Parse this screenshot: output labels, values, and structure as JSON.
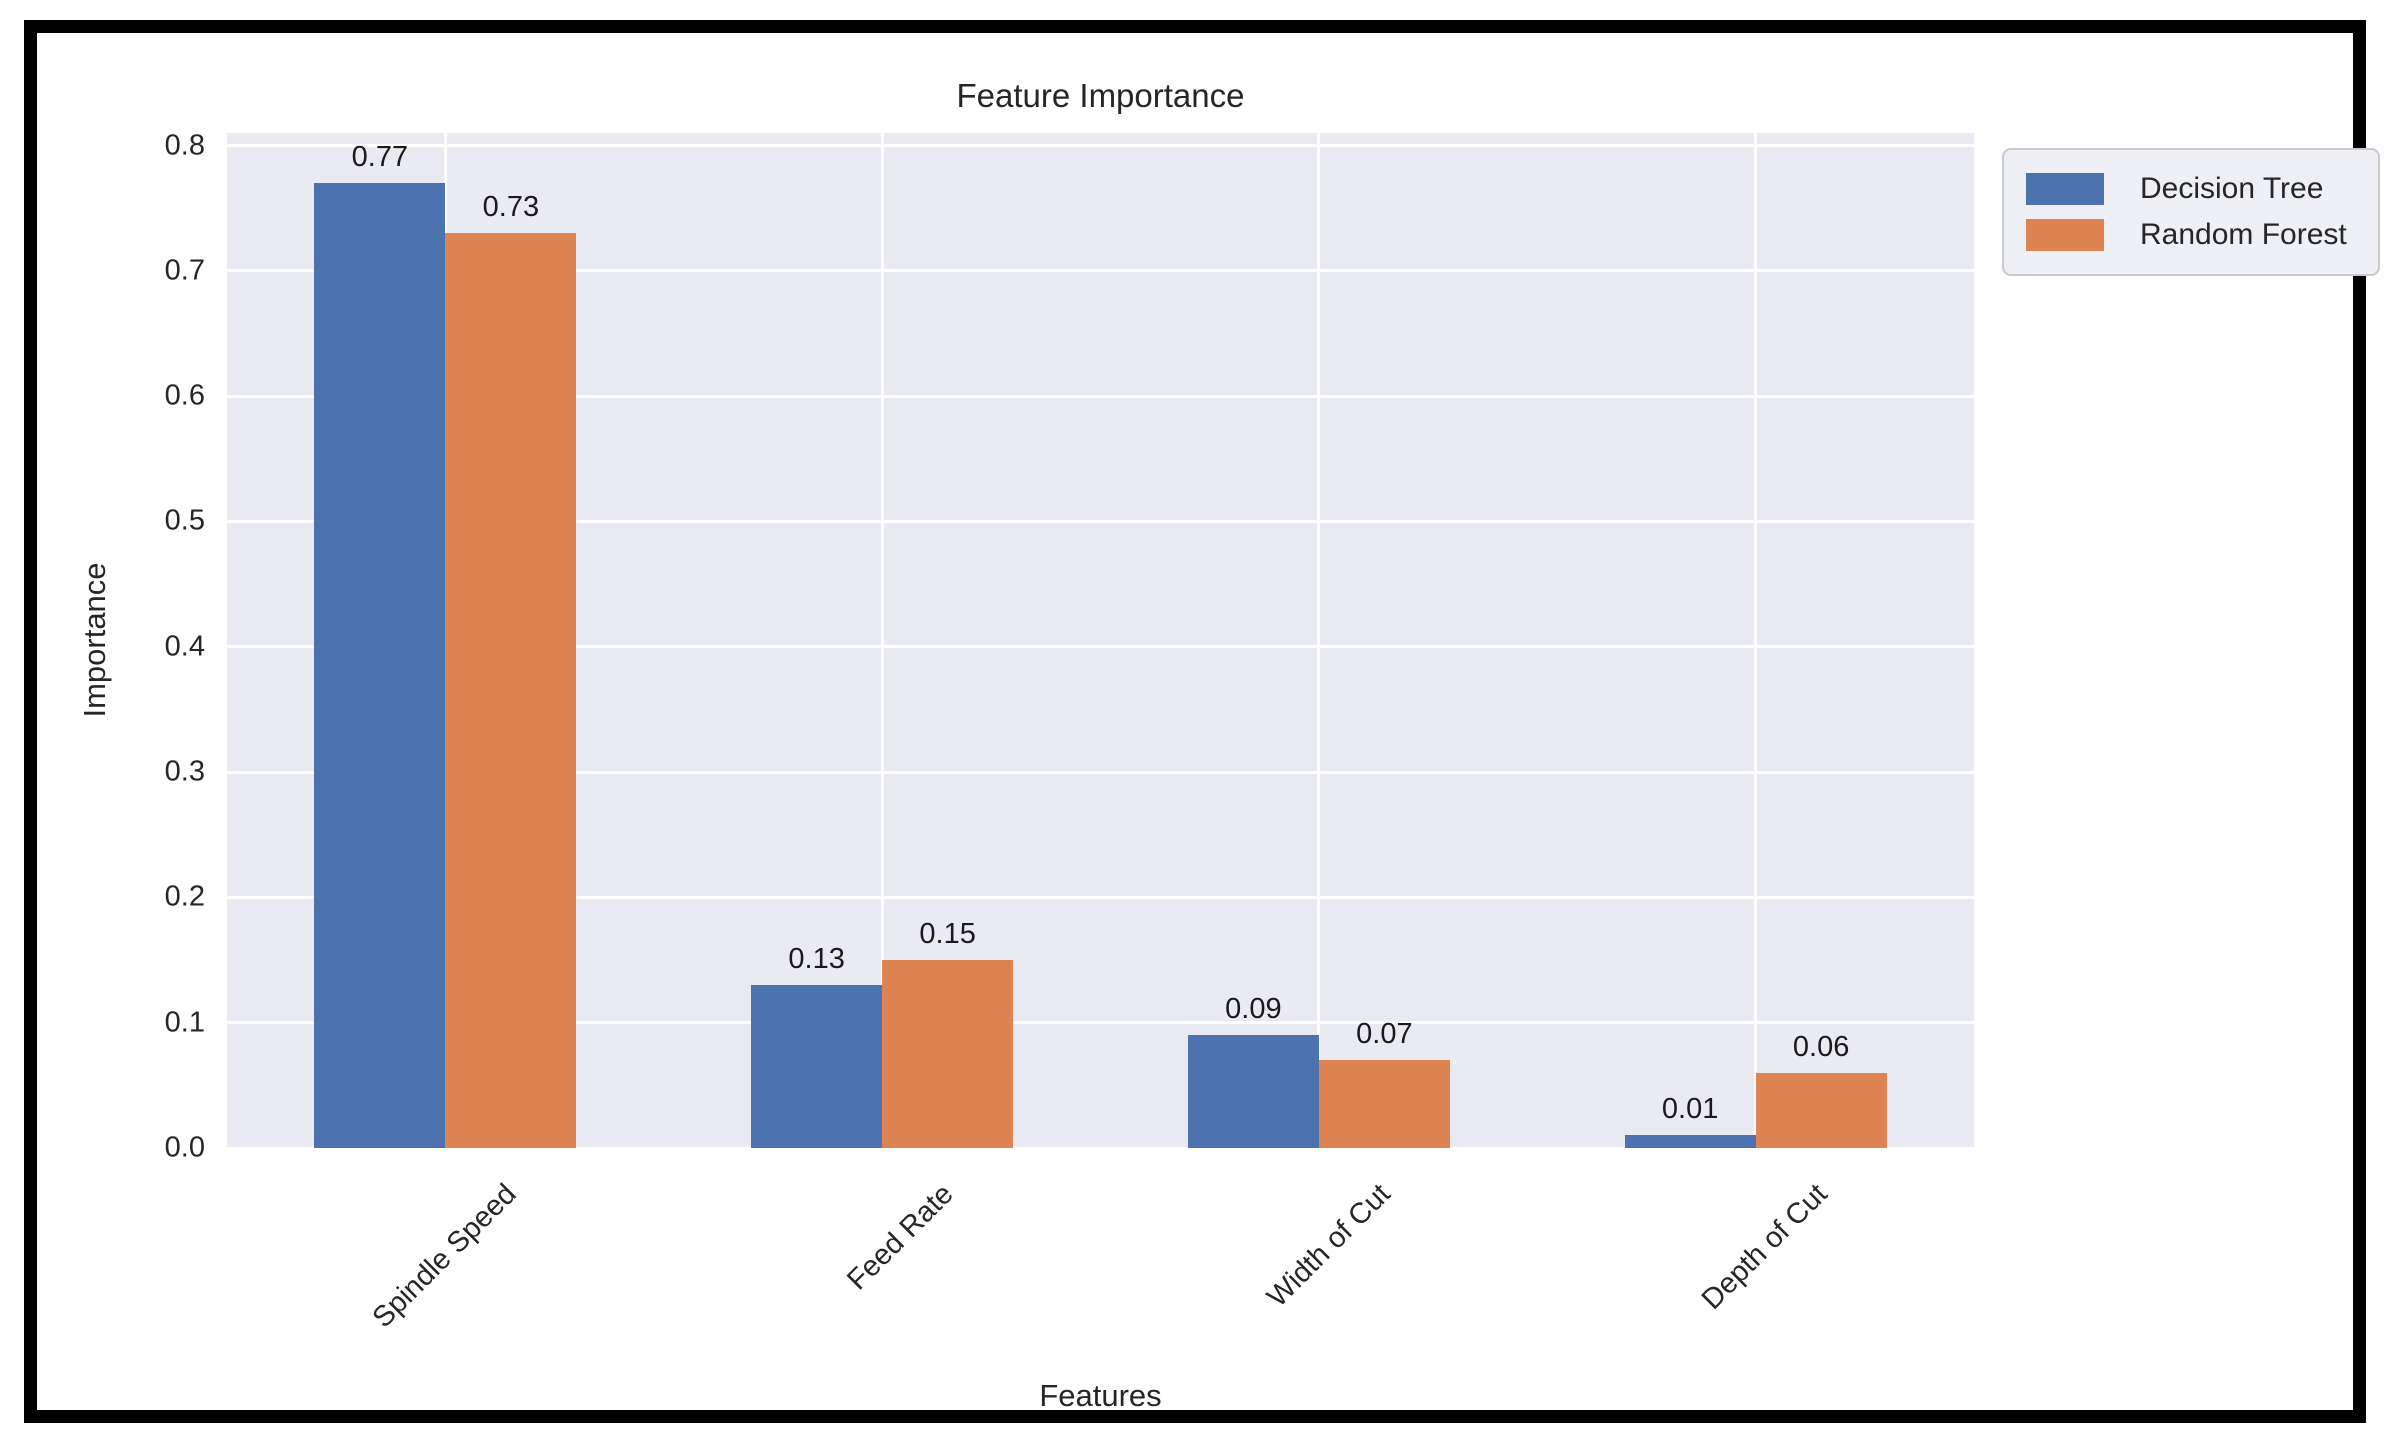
{
  "chart_data": {
    "type": "bar",
    "title": "Feature Importance",
    "xlabel": "Features",
    "ylabel": "Importance",
    "categories": [
      "Spindle Speed",
      "Feed Rate",
      "Width of Cut",
      "Depth of Cut"
    ],
    "series": [
      {
        "name": "Decision Tree",
        "color": "#4c72b0",
        "values": [
          0.77,
          0.13,
          0.09,
          0.01
        ],
        "labels": [
          "0.77",
          "0.13",
          "0.09",
          "0.01"
        ]
      },
      {
        "name": "Random Forest",
        "color": "#dd8452",
        "values": [
          0.73,
          0.15,
          0.07,
          0.06
        ],
        "labels": [
          "0.73",
          "0.15",
          "0.07",
          "0.06"
        ]
      }
    ],
    "y_ticks": [
      {
        "value": 0.0,
        "label": "0.0"
      },
      {
        "value": 0.1,
        "label": "0.1"
      },
      {
        "value": 0.2,
        "label": "0.2"
      },
      {
        "value": 0.3,
        "label": "0.3"
      },
      {
        "value": 0.4,
        "label": "0.4"
      },
      {
        "value": 0.5,
        "label": "0.5"
      },
      {
        "value": 0.6,
        "label": "0.6"
      },
      {
        "value": 0.7,
        "label": "0.7"
      },
      {
        "value": 0.8,
        "label": "0.8"
      }
    ],
    "ylim": [
      0,
      0.81
    ],
    "grid": true,
    "legend_position": "upper right, outside axes",
    "plot_bg_color": "#eaeaf2",
    "grid_color": "#ffffff",
    "xtick_rotation_deg": 45
  }
}
